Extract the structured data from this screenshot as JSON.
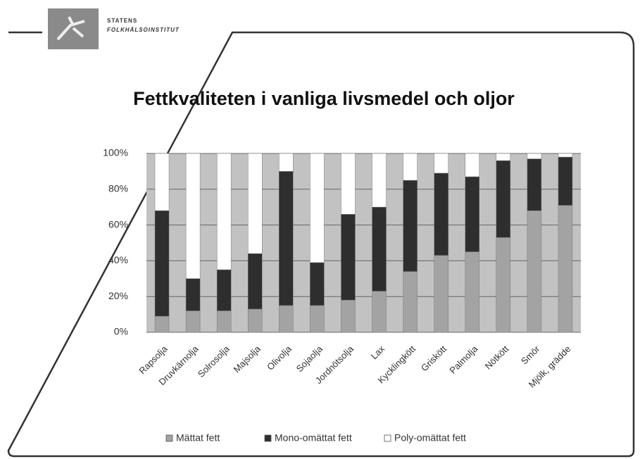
{
  "header": {
    "line1": "STATENS",
    "line2": "FOLKHÄLSOINSTITUT"
  },
  "chart_data": {
    "type": "stacked_bar",
    "title": "Fettkvaliteten i vanliga livsmedel och oljor",
    "categories": [
      "Rapsolja",
      "Druvkärnolja",
      "Solrosolja",
      "Majsolja",
      "Olivolja",
      "Sojaolja",
      "Jordnötsolja",
      "Lax",
      "Kycklingkött",
      "Griskött",
      "Palmolja",
      "Nötkött",
      "Smör",
      "Mjölk, grädde"
    ],
    "series": [
      {
        "name": "Mättat fett",
        "color": "#a3a3a3",
        "values": [
          9,
          12,
          12,
          13,
          15,
          15,
          18,
          23,
          34,
          43,
          45,
          53,
          68,
          71
        ]
      },
      {
        "name": "Mono-omättat fett",
        "color": "#2e2e2e",
        "values": [
          59,
          18,
          23,
          31,
          75,
          24,
          48,
          47,
          51,
          46,
          42,
          43,
          29,
          27
        ]
      },
      {
        "name": "Poly-omättat fett",
        "color": "#ffffff",
        "values": [
          32,
          70,
          65,
          56,
          10,
          61,
          34,
          30,
          15,
          11,
          13,
          4,
          3,
          2
        ]
      }
    ],
    "ylim": [
      0,
      100
    ],
    "yticks": [
      {
        "value": 0,
        "label": "0%"
      },
      {
        "value": 20,
        "label": "20%"
      },
      {
        "value": 40,
        "label": "40%"
      },
      {
        "value": 60,
        "label": "60%"
      },
      {
        "value": 80,
        "label": "80%"
      },
      {
        "value": 100,
        "label": "100%"
      }
    ],
    "grid": true,
    "legend": "bottom"
  }
}
